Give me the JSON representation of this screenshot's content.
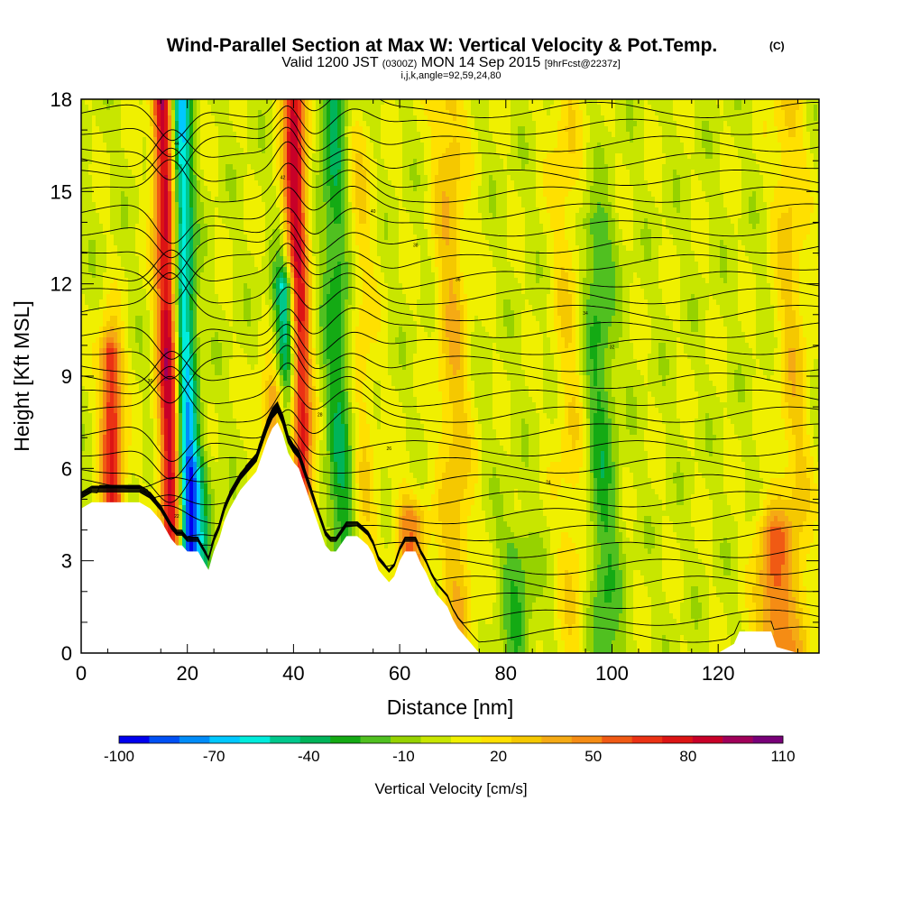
{
  "header": {
    "title": "Wind-Parallel Section at Max W: Vertical Velocity & Pot.Temp.",
    "title_suffix": "(C)",
    "subtitle_main": "Valid 1200 JST",
    "subtitle_z": "(0300Z)",
    "subtitle_date": "MON 14 Sep 2015",
    "subtitle_fcst": "[9hrFcst@2237z]",
    "subtitle_line3": "i,j,k,angle=92,59,24,80"
  },
  "colorbar": {
    "label": "Vertical Velocity [cm/s]",
    "tick_labels": [
      "-100",
      "-70",
      "-40",
      "-10",
      "20",
      "50",
      "80",
      "110"
    ],
    "colors": [
      "#0000ee",
      "#0050f5",
      "#008cf8",
      "#00c8ff",
      "#00ecdc",
      "#00c88c",
      "#00b45a",
      "#14aa14",
      "#50c020",
      "#96d200",
      "#c8e600",
      "#f0f000",
      "#ffe000",
      "#f5c800",
      "#f5aa14",
      "#f58c14",
      "#f05a14",
      "#eb3214",
      "#dc1414",
      "#c80028",
      "#a0005a",
      "#780078"
    ]
  },
  "chart_data": {
    "type": "contour",
    "xlabel": "Distance [nm]",
    "ylabel": "Height [Kft MSL]",
    "xlim": [
      0,
      139
    ],
    "ylim": [
      0,
      18
    ],
    "x_ticks": [
      "0",
      "20",
      "40",
      "60",
      "80",
      "100",
      "120"
    ],
    "y_ticks": [
      "0",
      "3",
      "6",
      "9",
      "12",
      "15",
      "18"
    ],
    "fill_field": "Vertical Velocity",
    "fill_units": "cm/s",
    "fill_range": [
      -100,
      110
    ],
    "fill_interval": 10,
    "contour_field": "Potential Temperature",
    "contour_units": "C",
    "terrain_profile": {
      "x": [
        0,
        2,
        5,
        8,
        11,
        13,
        15,
        16,
        17,
        18,
        19,
        20,
        21,
        22,
        23,
        24,
        25,
        26,
        27,
        28,
        29,
        30,
        31,
        32,
        33,
        34,
        35,
        36,
        37,
        38,
        39,
        40,
        41,
        42,
        43,
        44,
        45,
        46,
        47,
        48,
        50,
        52,
        54,
        55,
        56,
        57,
        58,
        59,
        60,
        61,
        62,
        63,
        64,
        65,
        66,
        67,
        68,
        69,
        70,
        71,
        72,
        73,
        74,
        75,
        80,
        90,
        100,
        110,
        120,
        123,
        124,
        126,
        130,
        131,
        135,
        139
      ],
      "h": [
        4.7,
        4.9,
        4.9,
        4.9,
        4.9,
        4.7,
        4.3,
        4.0,
        3.7,
        3.5,
        3.5,
        3.3,
        3.3,
        3.3,
        3.0,
        2.7,
        3.3,
        3.7,
        4.3,
        4.7,
        5.0,
        5.3,
        5.5,
        5.7,
        5.9,
        6.4,
        6.9,
        7.3,
        7.5,
        7.1,
        6.5,
        6.2,
        6.0,
        5.5,
        5.0,
        4.5,
        4.0,
        3.5,
        3.3,
        3.3,
        3.8,
        3.8,
        3.5,
        3.2,
        2.7,
        2.5,
        2.3,
        2.5,
        3.0,
        3.3,
        3.3,
        3.3,
        2.9,
        2.6,
        2.2,
        1.9,
        1.7,
        1.5,
        1.1,
        0.8,
        0.6,
        0.4,
        0.2,
        0.0,
        0.0,
        0.0,
        0.0,
        0.0,
        0.0,
        0.3,
        0.7,
        0.7,
        0.7,
        0.2,
        0.0,
        0.0
      ]
    },
    "updraft_bands": [
      {
        "x": 5.5,
        "top": 9.8,
        "peak": 75
      },
      {
        "x": 15.5,
        "top": 18,
        "peak": 95
      },
      {
        "x": 40,
        "top": 18,
        "peak": 90
      },
      {
        "x": 37,
        "top": 8.5,
        "peak": 55
      },
      {
        "x": 51,
        "top": 17,
        "peak": 30
      },
      {
        "x": 62,
        "top": 4.5,
        "peak": 45
      },
      {
        "x": 69,
        "top": 18,
        "peak": 30
      },
      {
        "x": 91,
        "top": 18,
        "peak": 20
      },
      {
        "x": 130,
        "top": 4,
        "peak": 50
      },
      {
        "x": 133,
        "top": 18,
        "peak": 25
      }
    ],
    "downdraft_bands": [
      {
        "x": 18.5,
        "top": 18,
        "peak": -75
      },
      {
        "x": 38.5,
        "top": 12,
        "peak": -75
      },
      {
        "x": 48,
        "top": 18,
        "peak": -45
      },
      {
        "x": 21,
        "top": 6,
        "peak": -40
      },
      {
        "x": 97,
        "top": 14,
        "peak": -30
      },
      {
        "x": 82,
        "top": 3.5,
        "peak": -25
      }
    ],
    "contour_labels": [
      "44",
      "42",
      "40",
      "38",
      "36",
      "34",
      "32",
      "30",
      "28",
      "26",
      "24",
      "22",
      "20"
    ]
  }
}
